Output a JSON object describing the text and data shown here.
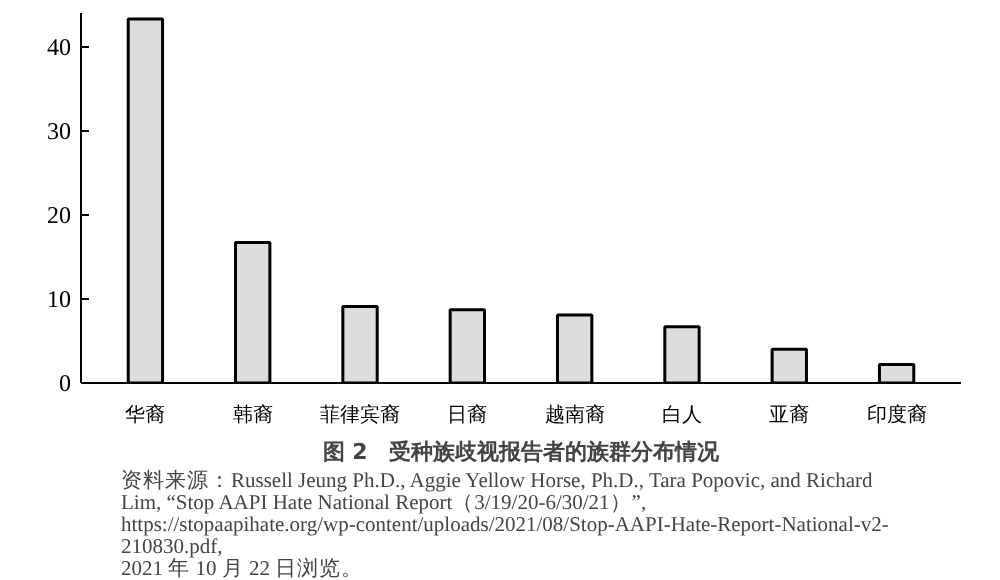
{
  "chart_data": {
    "type": "bar",
    "title": "图 2　受种族歧视报告者的族群分布情况",
    "categories": [
      "华裔",
      "韩裔",
      "菲律宾裔",
      "日裔",
      "越南裔",
      "白人",
      "亚裔",
      "印度裔"
    ],
    "values": [
      43.3,
      16.7,
      9.1,
      8.7,
      8.1,
      6.7,
      4.0,
      2.2
    ],
    "color": "#dddddd",
    "ylim": [
      0,
      44
    ],
    "yticks": [
      0,
      10,
      20,
      30,
      40
    ],
    "grid": false,
    "annotations": [
      "资料来源：Russell Jeung Ph.D., Aggie Yellow Horse, Ph.D., Tara Popovic, and Richard Lim, “Stop AAPI Hate National Report（3/19/20-6/30/21）”, https://stopaapihate.org/wp-content/uploads/2021/08/Stop-AAPI-Hate-Report-National-v2-210830.pdf, 2021 年 10 月 22 日浏览。"
    ]
  }
}
